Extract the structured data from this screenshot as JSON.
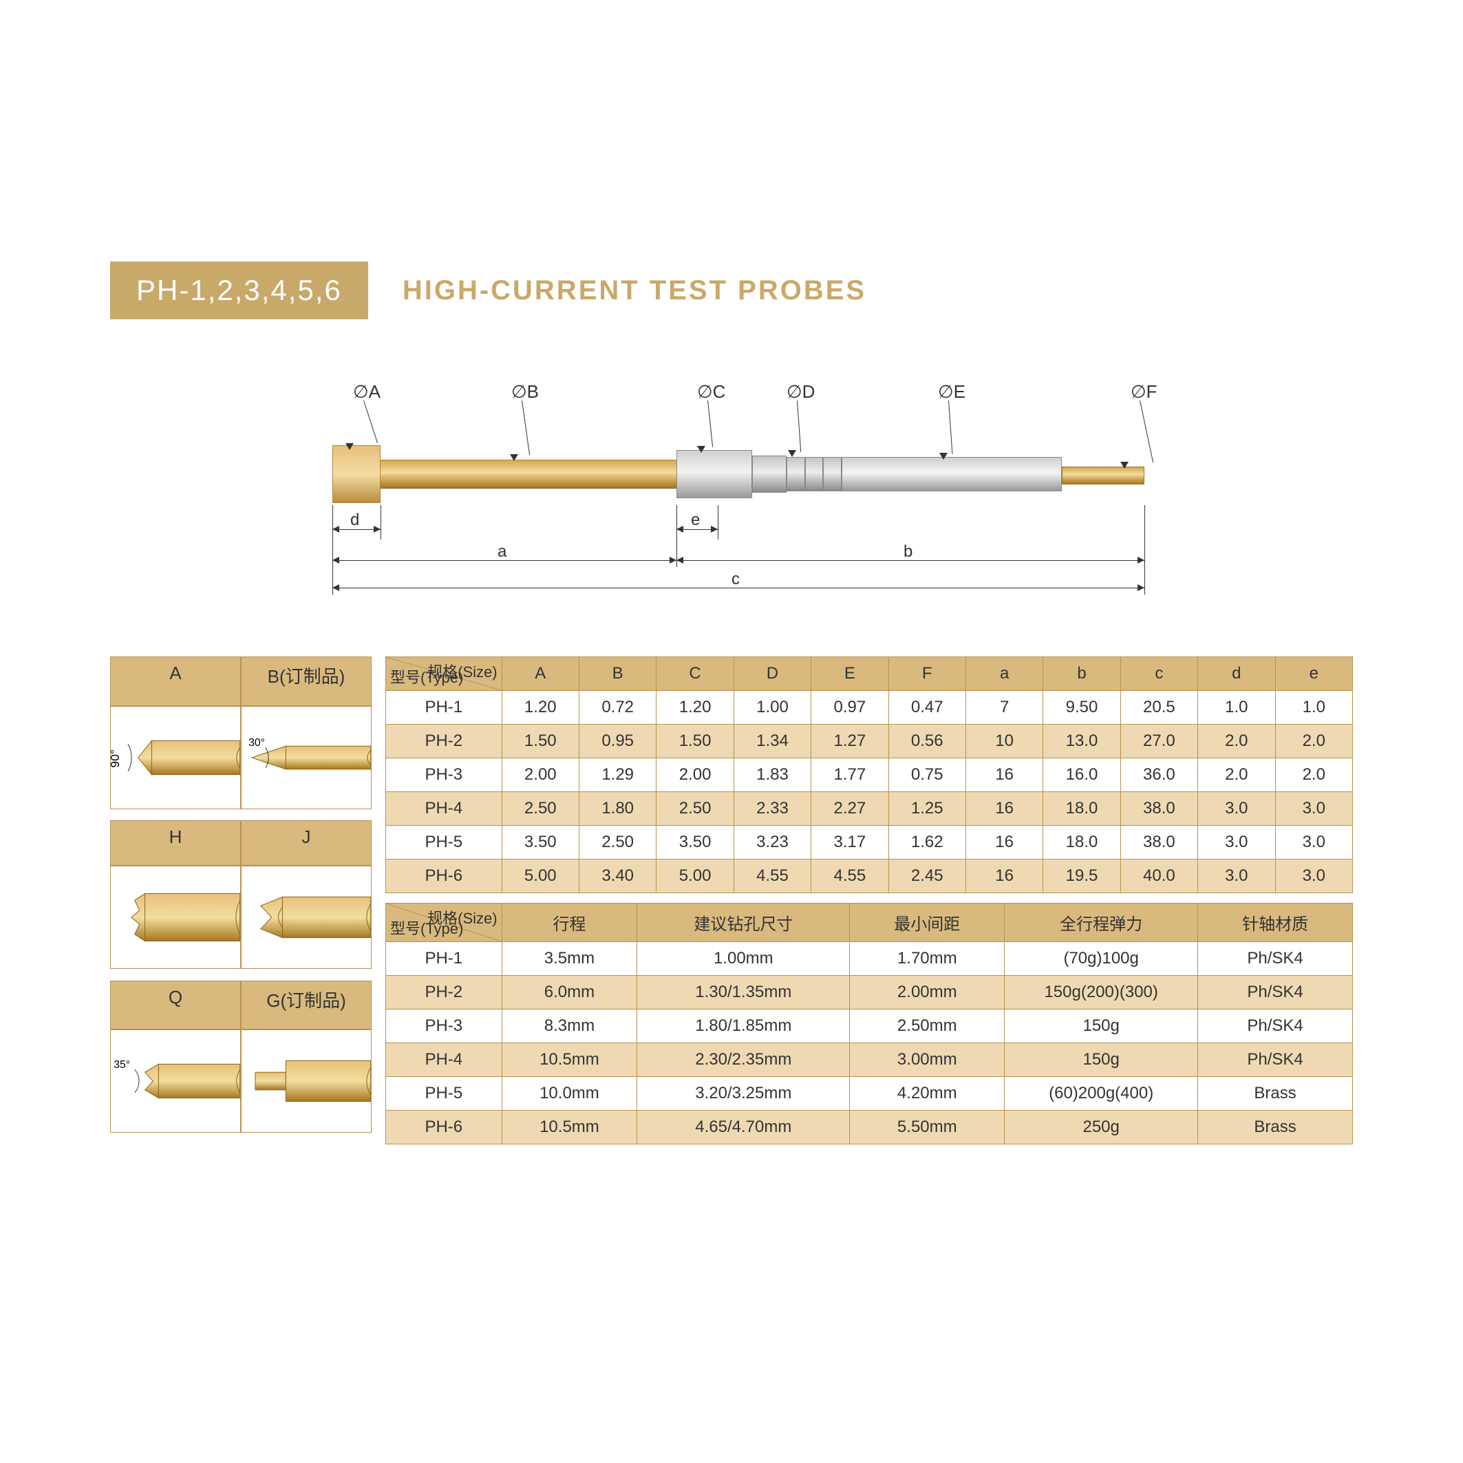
{
  "header": {
    "badge": "PH-1,2,3,4,5,6",
    "title": "HIGH-CURRENT TEST PROBES"
  },
  "colors": {
    "accent": "#c9a96a",
    "accent_text": "#ffffff",
    "table_header_bg": "#d9b97e",
    "table_border": "#b79250",
    "row_alt_bg": "#efd9b2",
    "row_bg": "#ffffff",
    "text": "#333333",
    "gold_light": "#f3dd9f",
    "gold_mid": "#e7c07a",
    "gold_dark": "#a57821",
    "silver_light": "#f2f2f2",
    "silver_dark": "#9a9a9a",
    "background": "#ffffff"
  },
  "diagram": {
    "callouts": [
      "∅A",
      "∅B",
      "∅C",
      "∅D",
      "∅E",
      "∅F"
    ],
    "dims_lower": [
      "d",
      "e",
      "a",
      "b",
      "c"
    ]
  },
  "tip_table": {
    "headers": [
      "A",
      "B(订制品)",
      "H",
      "J",
      "Q",
      "G(订制品)"
    ],
    "angles": {
      "A": "90°",
      "B": "30°",
      "Q": "35°"
    }
  },
  "table1": {
    "corner": {
      "top": "规格(Size)",
      "bottom": "型号(Type)"
    },
    "columns": [
      "A",
      "B",
      "C",
      "D",
      "E",
      "F",
      "a",
      "b",
      "c",
      "d",
      "e"
    ],
    "rows": [
      {
        "type": "PH-1",
        "v": [
          "1.20",
          "0.72",
          "1.20",
          "1.00",
          "0.97",
          "0.47",
          "7",
          "9.50",
          "20.5",
          "1.0",
          "1.0"
        ]
      },
      {
        "type": "PH-2",
        "v": [
          "1.50",
          "0.95",
          "1.50",
          "1.34",
          "1.27",
          "0.56",
          "10",
          "13.0",
          "27.0",
          "2.0",
          "2.0"
        ]
      },
      {
        "type": "PH-3",
        "v": [
          "2.00",
          "1.29",
          "2.00",
          "1.83",
          "1.77",
          "0.75",
          "16",
          "16.0",
          "36.0",
          "2.0",
          "2.0"
        ]
      },
      {
        "type": "PH-4",
        "v": [
          "2.50",
          "1.80",
          "2.50",
          "2.33",
          "2.27",
          "1.25",
          "16",
          "18.0",
          "38.0",
          "3.0",
          "3.0"
        ]
      },
      {
        "type": "PH-5",
        "v": [
          "3.50",
          "2.50",
          "3.50",
          "3.23",
          "3.17",
          "1.62",
          "16",
          "18.0",
          "38.0",
          "3.0",
          "3.0"
        ]
      },
      {
        "type": "PH-6",
        "v": [
          "5.00",
          "3.40",
          "5.00",
          "4.55",
          "4.55",
          "2.45",
          "16",
          "19.5",
          "40.0",
          "3.0",
          "3.0"
        ]
      }
    ]
  },
  "table2": {
    "corner": {
      "top": "规格(Size)",
      "bottom": "型号(Type)"
    },
    "columns": [
      "行程",
      "建议钻孔尺寸",
      "最小间距",
      "全行程弹力",
      "针轴材质"
    ],
    "rows": [
      {
        "type": "PH-1",
        "v": [
          "3.5mm",
          "1.00mm",
          "1.70mm",
          "(70g)100g",
          "Ph/SK4"
        ]
      },
      {
        "type": "PH-2",
        "v": [
          "6.0mm",
          "1.30/1.35mm",
          "2.00mm",
          "150g(200)(300)",
          "Ph/SK4"
        ]
      },
      {
        "type": "PH-3",
        "v": [
          "8.3mm",
          "1.80/1.85mm",
          "2.50mm",
          "150g",
          "Ph/SK4"
        ]
      },
      {
        "type": "PH-4",
        "v": [
          "10.5mm",
          "2.30/2.35mm",
          "3.00mm",
          "150g",
          "Ph/SK4"
        ]
      },
      {
        "type": "PH-5",
        "v": [
          "10.0mm",
          "3.20/3.25mm",
          "4.20mm",
          "(60)200g(400)",
          "Brass"
        ]
      },
      {
        "type": "PH-6",
        "v": [
          "10.5mm",
          "4.65/4.70mm",
          "5.50mm",
          "250g",
          "Brass"
        ]
      }
    ]
  },
  "typography": {
    "badge_fontsize": 42,
    "title_fontsize": 40,
    "table_fontsize": 24,
    "callout_fontsize": 26
  }
}
